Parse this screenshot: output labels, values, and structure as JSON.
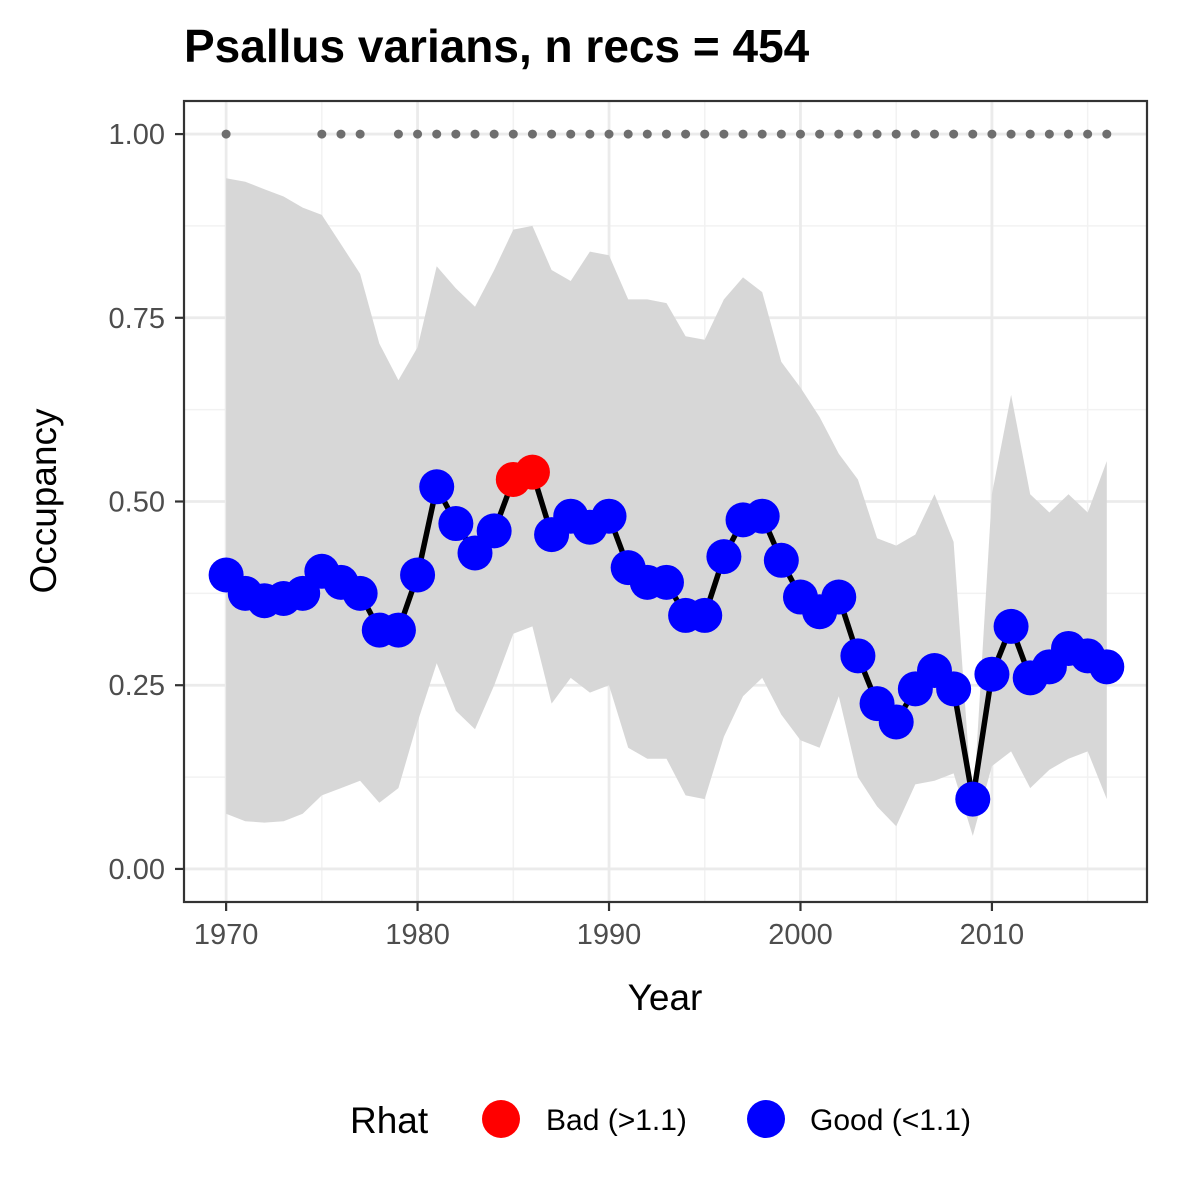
{
  "chart_data": {
    "type": "line",
    "title": "Psallus varians, n recs = 454",
    "xlabel": "Year",
    "ylabel": "Occupancy",
    "xlim": [
      1967.8,
      2018.1
    ],
    "ylim": [
      -0.045,
      1.045
    ],
    "x_ticks": [
      1970,
      1980,
      1990,
      2000,
      2010
    ],
    "x_tick_labels": [
      "1970",
      "1980",
      "1990",
      "2000",
      "2010"
    ],
    "y_ticks": [
      0,
      0.25,
      0.5,
      0.75,
      1
    ],
    "y_tick_labels": [
      "0.00",
      "0.25",
      "0.50",
      "0.75",
      "1.00"
    ],
    "grid": true,
    "legend": {
      "title": "Rhat",
      "position": "bottom",
      "entries": [
        {
          "label": "Bad (>1.1)",
          "color": "#ff0000"
        },
        {
          "label": "Good (<1.1)",
          "color": "#0000ff"
        }
      ]
    },
    "colors": {
      "bad": "#ff0000",
      "good": "#0000ff",
      "line": "#000000",
      "band": "#d6d6d6",
      "rug": "#6e6e6e"
    },
    "series": [
      {
        "x": [
          1970,
          1971,
          1972,
          1973,
          1974,
          1975,
          1976,
          1977,
          1978,
          1979,
          1980,
          1981,
          1982,
          1983,
          1984,
          1985,
          1986,
          1987,
          1988,
          1989,
          1990,
          1991,
          1992,
          1993,
          1994,
          1995,
          1996,
          1997,
          1998,
          1999,
          2000,
          2001,
          2002,
          2003,
          2004,
          2005,
          2006,
          2007,
          2008,
          2009,
          2010,
          2011,
          2012,
          2013,
          2014,
          2015,
          2016
        ],
        "y": [
          0.4,
          0.375,
          0.365,
          0.368,
          0.375,
          0.405,
          0.39,
          0.375,
          0.325,
          0.325,
          0.4,
          0.52,
          0.47,
          0.43,
          0.46,
          0.53,
          0.54,
          0.455,
          0.48,
          0.465,
          0.48,
          0.41,
          0.39,
          0.39,
          0.345,
          0.345,
          0.425,
          0.475,
          0.48,
          0.42,
          0.37,
          0.35,
          0.37,
          0.29,
          0.225,
          0.2,
          0.245,
          0.27,
          0.245,
          0.095,
          0.265,
          0.33,
          0.26,
          0.275,
          0.3,
          0.29,
          0.275
        ],
        "rhat": [
          "Good",
          "Good",
          "Good",
          "Good",
          "Good",
          "Good",
          "Good",
          "Good",
          "Good",
          "Good",
          "Good",
          "Good",
          "Good",
          "Good",
          "Good",
          "Bad",
          "Bad",
          "Good",
          "Good",
          "Good",
          "Good",
          "Good",
          "Good",
          "Good",
          "Good",
          "Good",
          "Good",
          "Good",
          "Good",
          "Good",
          "Good",
          "Good",
          "Good",
          "Good",
          "Good",
          "Good",
          "Good",
          "Good",
          "Good",
          "Good",
          "Good",
          "Good",
          "Good",
          "Good",
          "Good",
          "Good",
          "Good"
        ],
        "lower": [
          0.075,
          0.065,
          0.063,
          0.065,
          0.075,
          0.1,
          0.11,
          0.12,
          0.09,
          0.11,
          0.2,
          0.28,
          0.215,
          0.19,
          0.25,
          0.32,
          0.33,
          0.225,
          0.26,
          0.24,
          0.25,
          0.165,
          0.15,
          0.15,
          0.1,
          0.095,
          0.18,
          0.235,
          0.26,
          0.21,
          0.175,
          0.165,
          0.235,
          0.125,
          0.085,
          0.058,
          0.115,
          0.12,
          0.13,
          0.045,
          0.14,
          0.16,
          0.11,
          0.135,
          0.15,
          0.16,
          0.095
        ],
        "upper": [
          0.94,
          0.935,
          0.925,
          0.915,
          0.9,
          0.89,
          0.85,
          0.81,
          0.715,
          0.665,
          0.71,
          0.82,
          0.79,
          0.765,
          0.815,
          0.87,
          0.875,
          0.815,
          0.8,
          0.84,
          0.835,
          0.775,
          0.775,
          0.77,
          0.725,
          0.72,
          0.775,
          0.805,
          0.785,
          0.69,
          0.655,
          0.615,
          0.565,
          0.53,
          0.45,
          0.44,
          0.455,
          0.51,
          0.445,
          0.075,
          0.51,
          0.645,
          0.51,
          0.485,
          0.51,
          0.485,
          0.555
        ]
      }
    ],
    "rug_years": [
      1970,
      1975,
      1976,
      1977,
      1979,
      1980,
      1981,
      1982,
      1983,
      1984,
      1985,
      1986,
      1987,
      1988,
      1989,
      1990,
      1991,
      1992,
      1993,
      1994,
      1995,
      1996,
      1997,
      1998,
      1999,
      2000,
      2001,
      2002,
      2003,
      2004,
      2005,
      2006,
      2007,
      2008,
      2009,
      2010,
      2011,
      2012,
      2013,
      2014,
      2015,
      2016
    ],
    "rug_value": 1.0
  }
}
